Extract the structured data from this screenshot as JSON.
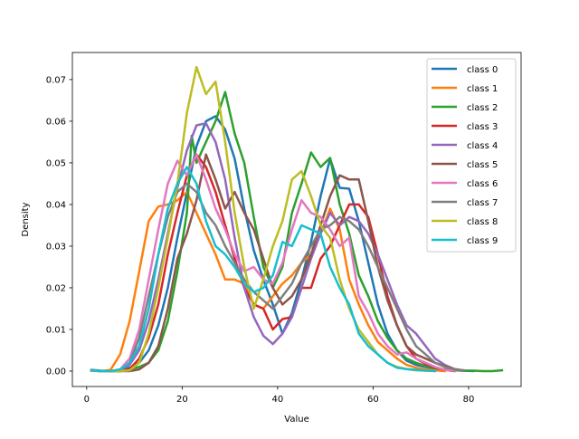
{
  "chart_data": {
    "type": "line",
    "title": "",
    "xlabel": "Value",
    "ylabel": "Density",
    "xlim": [
      -3,
      91
    ],
    "ylim": [
      -0.0037,
      0.0765
    ],
    "xticks": [
      0,
      20,
      40,
      60,
      80
    ],
    "xtick_labels": [
      "0",
      "20",
      "40",
      "60",
      "80"
    ],
    "yticks": [
      0.0,
      0.01,
      0.02,
      0.03,
      0.04,
      0.05,
      0.06,
      0.07
    ],
    "ytick_labels": [
      "0.00",
      "0.01",
      "0.02",
      "0.03",
      "0.04",
      "0.05",
      "0.06",
      "0.07"
    ],
    "grid": false,
    "legend_position": "top-right",
    "series": [
      {
        "name": "class 0",
        "color": "#1f77b4",
        "x": [
          1,
          3,
          5,
          7,
          9,
          11,
          13,
          15,
          17,
          19,
          21,
          23,
          25,
          27,
          29,
          31,
          33,
          35,
          37,
          39,
          41,
          43,
          45,
          47,
          49,
          51,
          53,
          55,
          57,
          59,
          61,
          63,
          65,
          67,
          69,
          71,
          73,
          75,
          77,
          79,
          81
        ],
        "y": [
          0.0003,
          0.0001,
          0,
          0.0002,
          0.0008,
          0.002,
          0.005,
          0.011,
          0.02,
          0.032,
          0.043,
          0.054,
          0.06,
          0.0612,
          0.058,
          0.051,
          0.039,
          0.029,
          0.022,
          0.016,
          0.009,
          0.014,
          0.022,
          0.031,
          0.042,
          0.051,
          0.044,
          0.0438,
          0.036,
          0.026,
          0.016,
          0.009,
          0.005,
          0.0025,
          0.0015,
          0.001,
          0.0005,
          0.0003,
          0.0002,
          0.0001,
          0
        ]
      },
      {
        "name": "class 1",
        "color": "#ff7f0e",
        "x": [
          1,
          3,
          5,
          7,
          9,
          11,
          13,
          15,
          17,
          19,
          21,
          23,
          25,
          27,
          29,
          31,
          33,
          35,
          37,
          39,
          41,
          43,
          45,
          47,
          49,
          51,
          53,
          55,
          57,
          59,
          61,
          63,
          65,
          67,
          69,
          71,
          73,
          75
        ],
        "y": [
          0.0002,
          0,
          0.0003,
          0.004,
          0.012,
          0.024,
          0.036,
          0.0395,
          0.04,
          0.041,
          0.043,
          0.038,
          0.033,
          0.028,
          0.022,
          0.022,
          0.021,
          0.016,
          0.015,
          0.018,
          0.021,
          0.023,
          0.026,
          0.028,
          0.033,
          0.039,
          0.034,
          0.022,
          0.016,
          0.011,
          0.007,
          0.005,
          0.003,
          0.0015,
          0.0008,
          0.0004,
          0.0002,
          0
        ]
      },
      {
        "name": "class 2",
        "color": "#2ca02c",
        "x": [
          1,
          3,
          5,
          7,
          9,
          11,
          13,
          15,
          17,
          19,
          21,
          22,
          23,
          25,
          27,
          29,
          31,
          33,
          35,
          37,
          39,
          41,
          43,
          45,
          47,
          49,
          51,
          53,
          55,
          57,
          59,
          61,
          63,
          65,
          67,
          69,
          71,
          73,
          75,
          77,
          79,
          81,
          83,
          85,
          87
        ],
        "y": [
          0.0002,
          0,
          0,
          0,
          0.0005,
          0.001,
          0.002,
          0.005,
          0.012,
          0.024,
          0.038,
          0.0565,
          0.05,
          0.055,
          0.06,
          0.067,
          0.057,
          0.05,
          0.037,
          0.025,
          0.02,
          0.025,
          0.038,
          0.045,
          0.0525,
          0.049,
          0.0512,
          0.04,
          0.033,
          0.023,
          0.018,
          0.012,
          0.008,
          0.005,
          0.003,
          0.002,
          0.0012,
          0.0007,
          0.0004,
          0.0002,
          0.0001,
          0.0001,
          0,
          0,
          0.0002
        ]
      },
      {
        "name": "class 3",
        "color": "#d62728",
        "x": [
          1,
          3,
          5,
          7,
          9,
          11,
          13,
          15,
          17,
          19,
          21,
          23,
          25,
          27,
          29,
          31,
          33,
          35,
          37,
          39,
          41,
          43,
          45,
          47,
          49,
          51,
          53,
          55,
          57,
          59,
          61,
          63,
          65,
          67,
          69,
          71,
          73,
          75,
          77
        ],
        "y": [
          0.0001,
          0,
          0,
          0,
          0.0005,
          0.003,
          0.008,
          0.016,
          0.028,
          0.038,
          0.047,
          0.052,
          0.049,
          0.043,
          0.035,
          0.027,
          0.02,
          0.016,
          0.015,
          0.01,
          0.0125,
          0.013,
          0.02,
          0.02,
          0.027,
          0.03,
          0.035,
          0.04,
          0.04,
          0.037,
          0.028,
          0.018,
          0.011,
          0.006,
          0.003,
          0.0017,
          0.0008,
          0.0003,
          0
        ]
      },
      {
        "name": "class 4",
        "color": "#9467bd",
        "x": [
          1,
          3,
          5,
          7,
          9,
          11,
          13,
          15,
          17,
          19,
          21,
          23,
          25,
          27,
          29,
          31,
          33,
          35,
          37,
          39,
          41,
          43,
          45,
          47,
          49,
          51,
          53,
          55,
          57,
          59,
          61,
          63,
          65,
          67,
          69,
          71,
          73,
          75,
          77,
          79
        ],
        "y": [
          0.0002,
          0,
          0,
          0.0002,
          0.0015,
          0.005,
          0.012,
          0.022,
          0.033,
          0.044,
          0.053,
          0.059,
          0.0595,
          0.055,
          0.046,
          0.032,
          0.02,
          0.013,
          0.0085,
          0.0065,
          0.009,
          0.013,
          0.02,
          0.027,
          0.033,
          0.038,
          0.035,
          0.037,
          0.036,
          0.033,
          0.028,
          0.022,
          0.016,
          0.011,
          0.009,
          0.006,
          0.003,
          0.0015,
          0.0005,
          0.0002
        ]
      },
      {
        "name": "class 5",
        "color": "#8c564b",
        "x": [
          1,
          3,
          5,
          7,
          9,
          11,
          13,
          15,
          17,
          19,
          21,
          23,
          25,
          27,
          29,
          31,
          33,
          35,
          37,
          39,
          41,
          43,
          45,
          47,
          49,
          51,
          53,
          55,
          57,
          59,
          61,
          63,
          65,
          67,
          69,
          71,
          73,
          75,
          77,
          79
        ],
        "y": [
          0.0001,
          0,
          0,
          0,
          0,
          0.0004,
          0.002,
          0.006,
          0.015,
          0.027,
          0.033,
          0.041,
          0.052,
          0.046,
          0.039,
          0.043,
          0.038,
          0.034,
          0.027,
          0.02,
          0.016,
          0.018,
          0.022,
          0.028,
          0.035,
          0.042,
          0.047,
          0.046,
          0.046,
          0.036,
          0.025,
          0.017,
          0.011,
          0.006,
          0.004,
          0.003,
          0.002,
          0.0012,
          0.0005,
          0.0001
        ]
      },
      {
        "name": "class 6",
        "color": "#e377c2",
        "x": [
          1,
          3,
          5,
          7,
          9,
          11,
          13,
          15,
          17,
          19,
          21,
          23,
          25,
          27,
          29,
          31,
          33,
          35,
          37,
          39,
          41,
          43,
          45,
          47,
          49,
          51,
          53,
          55,
          57,
          59,
          61,
          63,
          65,
          67,
          69,
          71,
          73,
          75,
          77
        ],
        "y": [
          0.0002,
          0,
          0,
          0.0004,
          0.003,
          0.01,
          0.022,
          0.034,
          0.045,
          0.0505,
          0.047,
          0.052,
          0.046,
          0.039,
          0.034,
          0.028,
          0.024,
          0.025,
          0.022,
          0.021,
          0.026,
          0.034,
          0.041,
          0.038,
          0.037,
          0.034,
          0.03,
          0.032,
          0.018,
          0.014,
          0.009,
          0.006,
          0.004,
          0.0045,
          0.003,
          0.002,
          0.001,
          0.0003,
          0.0001
        ]
      },
      {
        "name": "class 7",
        "color": "#7f7f7f",
        "x": [
          1,
          3,
          5,
          7,
          9,
          11,
          13,
          15,
          17,
          19,
          21,
          23,
          25,
          27,
          29,
          31,
          33,
          35,
          37,
          39,
          41,
          43,
          45,
          47,
          49,
          51,
          53,
          55,
          57,
          59,
          61,
          63,
          65,
          67,
          69,
          71,
          73,
          75,
          77,
          79
        ],
        "y": [
          0.0001,
          0,
          0,
          0.0003,
          0.002,
          0.008,
          0.018,
          0.028,
          0.037,
          0.043,
          0.045,
          0.043,
          0.038,
          0.035,
          0.03,
          0.026,
          0.022,
          0.019,
          0.017,
          0.015,
          0.018,
          0.021,
          0.026,
          0.03,
          0.034,
          0.035,
          0.037,
          0.036,
          0.034,
          0.03,
          0.025,
          0.02,
          0.015,
          0.01,
          0.006,
          0.004,
          0.002,
          0.001,
          0.0004,
          0.0001
        ]
      },
      {
        "name": "class 8",
        "color": "#bcbd22",
        "x": [
          1,
          3,
          5,
          7,
          9,
          11,
          13,
          15,
          17,
          19,
          21,
          23,
          25,
          27,
          29,
          31,
          33,
          35,
          37,
          39,
          41,
          43,
          45,
          47,
          49,
          51,
          53,
          55,
          57,
          59,
          61,
          63,
          65,
          67,
          69,
          71,
          73
        ],
        "y": [
          0.0001,
          0,
          0,
          0,
          0.0002,
          0.002,
          0.009,
          0.02,
          0.032,
          0.045,
          0.062,
          0.073,
          0.0665,
          0.0695,
          0.055,
          0.038,
          0.025,
          0.015,
          0.022,
          0.03,
          0.036,
          0.046,
          0.048,
          0.042,
          0.035,
          0.032,
          0.022,
          0.015,
          0.01,
          0.007,
          0.004,
          0.002,
          0.001,
          0.0005,
          0.0002,
          0.0001,
          0
        ]
      },
      {
        "name": "class 9",
        "color": "#17becf",
        "x": [
          1,
          3,
          5,
          7,
          9,
          11,
          13,
          15,
          17,
          19,
          21,
          23,
          25,
          27,
          29,
          31,
          33,
          35,
          37,
          39,
          41,
          43,
          45,
          47,
          49,
          51,
          53,
          55,
          57,
          59,
          61,
          63,
          65,
          67,
          69,
          71,
          73
        ],
        "y": [
          0.0002,
          0,
          0,
          0.0004,
          0.002,
          0.006,
          0.015,
          0.028,
          0.039,
          0.045,
          0.049,
          0.045,
          0.036,
          0.03,
          0.028,
          0.025,
          0.021,
          0.019,
          0.02,
          0.023,
          0.031,
          0.03,
          0.035,
          0.034,
          0.033,
          0.025,
          0.02,
          0.016,
          0.009,
          0.006,
          0.004,
          0.002,
          0.0008,
          0.0005,
          0.0003,
          0.0001,
          0
        ]
      }
    ]
  }
}
